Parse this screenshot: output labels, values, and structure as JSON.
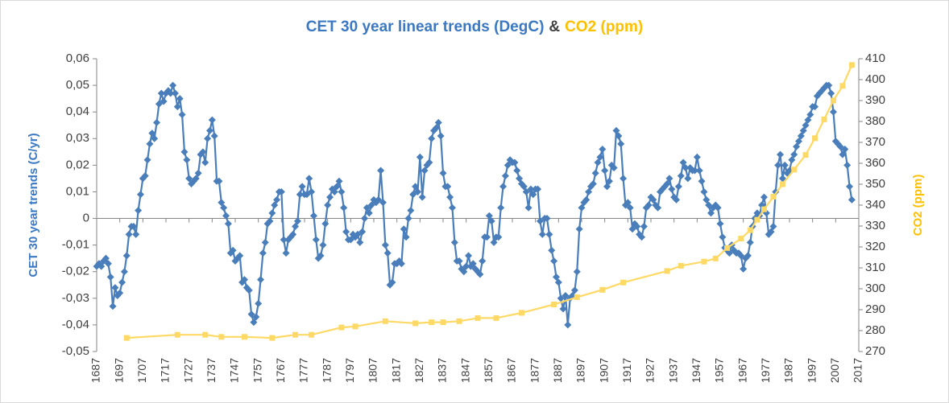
{
  "chart_data": {
    "type": "line",
    "title": [
      "CET 30 year linear trends (DegC)",
      "&",
      "CO2  (ppm)"
    ],
    "title_colors": [
      "#3b78c3",
      "#404040",
      "#ffc000"
    ],
    "y_label": "CET 30 year trends (C/yr)",
    "y2_label": "CO2  (ppm)",
    "xlim": [
      1687,
      2017
    ],
    "xticks": [
      1687,
      1697,
      1707,
      1717,
      1727,
      1737,
      1747,
      1757,
      1767,
      1777,
      1787,
      1797,
      1807,
      1817,
      1827,
      1837,
      1847,
      1857,
      1867,
      1877,
      1887,
      1897,
      1907,
      1917,
      1927,
      1937,
      1947,
      1957,
      1967,
      1977,
      1987,
      1997,
      2007,
      2017
    ],
    "ylim": [
      -0.05,
      0.06
    ],
    "yticks": [
      {
        "value": 0.06,
        "label": "0,06"
      },
      {
        "value": 0.05,
        "label": "0,05"
      },
      {
        "value": 0.04,
        "label": "0,04"
      },
      {
        "value": 0.03,
        "label": "0,03"
      },
      {
        "value": 0.02,
        "label": "0,02"
      },
      {
        "value": 0.01,
        "label": "0,01"
      },
      0,
      {
        "value": -0.01,
        "label": "-0,01"
      },
      {
        "value": -0.02,
        "label": "-0,02"
      },
      {
        "value": -0.03,
        "label": "-0,03"
      },
      {
        "value": -0.04,
        "label": "-0,04"
      },
      {
        "value": -0.05,
        "label": "-0,05"
      }
    ],
    "y2lim": [
      270,
      410
    ],
    "y2ticks": [
      270,
      280,
      290,
      300,
      310,
      320,
      330,
      340,
      350,
      360,
      370,
      380,
      390,
      400,
      410
    ],
    "grid": false,
    "series": [
      {
        "color": "#4a7ebb",
        "marker": "diamond",
        "axis": "y",
        "x": [
          1687,
          1688,
          1689,
          1690,
          1691,
          1692,
          1693,
          1694,
          1695,
          1696,
          1697,
          1698,
          1699,
          1700,
          1701,
          1702,
          1703,
          1704,
          1705,
          1706,
          1707,
          1708,
          1709,
          1710,
          1711,
          1712,
          1713,
          1714,
          1715,
          1716,
          1717,
          1718,
          1719,
          1720,
          1721,
          1722,
          1723,
          1724,
          1725,
          1726,
          1727,
          1728,
          1729,
          1730,
          1731,
          1732,
          1733,
          1734,
          1735,
          1736,
          1737,
          1738,
          1739,
          1740,
          1741,
          1742,
          1743,
          1744,
          1745,
          1746,
          1747,
          1748,
          1749,
          1750,
          1751,
          1752,
          1753,
          1754,
          1755,
          1756,
          1757,
          1758,
          1759,
          1760,
          1761,
          1762,
          1763,
          1764,
          1765,
          1766,
          1767,
          1768,
          1769,
          1770,
          1771,
          1772,
          1773,
          1774,
          1775,
          1776,
          1777,
          1778,
          1779,
          1780,
          1781,
          1782,
          1783,
          1784,
          1785,
          1786,
          1787,
          1788,
          1789,
          1790,
          1791,
          1792,
          1793,
          1794,
          1795,
          1796,
          1797,
          1798,
          1799,
          1800,
          1801,
          1802,
          1803,
          1804,
          1805,
          1806,
          1807,
          1808,
          1809,
          1810,
          1811,
          1812,
          1813,
          1814,
          1815,
          1816,
          1817,
          1818,
          1819,
          1820,
          1821,
          1822,
          1823,
          1824,
          1825,
          1826,
          1827,
          1828,
          1829,
          1830,
          1831,
          1832,
          1833,
          1834,
          1835,
          1836,
          1837,
          1838,
          1839,
          1840,
          1841,
          1842,
          1843,
          1844,
          1845,
          1846,
          1847,
          1848,
          1849,
          1850,
          1851,
          1852,
          1853,
          1854,
          1855,
          1856,
          1857,
          1858,
          1859,
          1860,
          1861,
          1862,
          1863,
          1864,
          1865,
          1866,
          1867,
          1868,
          1869,
          1870,
          1871,
          1872,
          1873,
          1874,
          1875,
          1876,
          1877,
          1878,
          1879,
          1880,
          1881,
          1882,
          1883,
          1884,
          1885,
          1886,
          1887,
          1888,
          1889,
          1890,
          1891,
          1892,
          1893,
          1894,
          1895,
          1896,
          1897,
          1898,
          1899,
          1900,
          1901,
          1902,
          1903,
          1904,
          1905,
          1906,
          1907,
          1908,
          1909,
          1910,
          1911,
          1912,
          1913,
          1914,
          1915,
          1916,
          1917,
          1918,
          1919,
          1920,
          1921,
          1922,
          1923,
          1924,
          1925,
          1926,
          1927,
          1928,
          1929,
          1930,
          1931,
          1932,
          1933,
          1934,
          1935,
          1936,
          1937,
          1938,
          1939,
          1940,
          1941,
          1942,
          1943,
          1944,
          1945,
          1946,
          1947,
          1948,
          1949,
          1950,
          1951,
          1952,
          1953,
          1954,
          1955,
          1956,
          1957,
          1958,
          1959,
          1960,
          1961,
          1962,
          1963,
          1964,
          1965,
          1966,
          1967,
          1968,
          1969,
          1970,
          1971,
          1972,
          1973,
          1974,
          1975,
          1976,
          1977,
          1978,
          1979,
          1980,
          1981,
          1982,
          1983,
          1984,
          1985,
          1986,
          1987,
          1988,
          1989,
          1990,
          1991,
          1992,
          1993,
          1994,
          1995,
          1996,
          1997,
          1998,
          1999,
          2000,
          2001,
          2002,
          2003,
          2004,
          2005,
          2006,
          2007,
          2008,
          2009,
          2010,
          2011,
          2012,
          2013,
          2014
        ],
        "values": [
          -0.018,
          -0.017,
          -0.018,
          -0.016,
          -0.015,
          -0.017,
          -0.022,
          -0.033,
          -0.026,
          -0.029,
          -0.028,
          -0.024,
          -0.02,
          -0.014,
          -0.006,
          -0.003,
          -0.003,
          -0.006,
          0.003,
          0.009,
          0.015,
          0.016,
          0.022,
          0.028,
          0.032,
          0.03,
          0.036,
          0.043,
          0.047,
          0.044,
          0.047,
          0.048,
          0.047,
          0.05,
          0.047,
          0.042,
          0.045,
          0.039,
          0.025,
          0.022,
          0.015,
          0.013,
          0.014,
          0.015,
          0.017,
          0.024,
          0.025,
          0.021,
          0.03,
          0.033,
          0.037,
          0.031,
          0.014,
          0.014,
          0.006,
          0.004,
          0.001,
          -0.002,
          -0.013,
          -0.012,
          -0.016,
          -0.015,
          -0.014,
          -0.024,
          -0.023,
          -0.026,
          -0.027,
          -0.036,
          -0.039,
          -0.037,
          -0.032,
          -0.023,
          -0.013,
          -0.009,
          -0.002,
          -0.001,
          0.002,
          0.005,
          0.007,
          0.01,
          0.01,
          -0.008,
          -0.013,
          -0.008,
          -0.007,
          -0.006,
          -0.003,
          -0.001,
          0.009,
          0.012,
          0.009,
          0.009,
          0.015,
          0.01,
          0.001,
          -0.008,
          -0.015,
          -0.014,
          -0.01,
          -0.002,
          0.005,
          0.008,
          0.011,
          0.01,
          0.012,
          0.014,
          0.01,
          0.004,
          -0.005,
          -0.008,
          -0.008,
          -0.006,
          -0.007,
          -0.006,
          -0.009,
          -0.005,
          0.0,
          0.004,
          0.002,
          0.005,
          0.007,
          0.006,
          0.007,
          0.018,
          0.006,
          -0.01,
          -0.013,
          -0.025,
          -0.024,
          -0.017,
          -0.017,
          -0.016,
          -0.017,
          -0.004,
          -0.007,
          0.0,
          0.003,
          0.009,
          0.012,
          0.01,
          0.023,
          0.008,
          0.018,
          0.02,
          0.021,
          0.03,
          0.033,
          0.034,
          0.036,
          0.031,
          0.017,
          0.012,
          0.012,
          0.008,
          0.004,
          -0.009,
          -0.016,
          -0.016,
          -0.019,
          -0.02,
          -0.018,
          -0.014,
          -0.018,
          -0.017,
          -0.019,
          -0.02,
          -0.021,
          -0.016,
          -0.007,
          -0.007,
          0.001,
          -0.001,
          -0.009,
          -0.007,
          -0.007,
          0.004,
          0.012,
          0.016,
          0.02,
          0.022,
          0.021,
          0.021,
          0.018,
          0.015,
          0.013,
          0.012,
          0.01,
          0.004,
          0.011,
          0.009,
          0.011,
          0.011,
          -0.001,
          -0.006,
          0.0,
          0.0,
          -0.006,
          -0.012,
          -0.016,
          -0.022,
          -0.024,
          -0.03,
          -0.034,
          -0.029,
          -0.04,
          -0.03,
          -0.029,
          -0.027,
          -0.02,
          -0.004,
          0.004,
          0.006,
          0.007,
          0.01,
          0.012,
          0.013,
          0.017,
          0.021,
          0.023,
          0.026,
          0.018,
          0.012,
          0.014,
          0.02,
          0.019,
          0.033,
          0.031,
          0.028,
          0.015,
          0.005,
          0.006,
          0.004,
          -0.004,
          -0.002,
          -0.003,
          -0.006,
          -0.007,
          -0.003,
          0.004,
          0.005,
          0.008,
          0.007,
          0.005,
          0.004,
          0.01,
          0.011,
          0.012,
          0.013,
          0.015,
          0.011,
          0.008,
          0.007,
          0.012,
          0.016,
          0.021,
          0.019,
          0.015,
          0.019,
          0.018,
          0.018,
          0.023,
          0.018,
          0.014,
          0.01,
          0.007,
          0.005,
          0.002,
          0.004,
          0.005,
          0.004,
          -0.002,
          -0.007,
          -0.011,
          -0.012,
          -0.013,
          -0.01,
          -0.012,
          -0.013,
          -0.013,
          -0.014,
          -0.019,
          -0.015,
          -0.014,
          -0.009,
          -0.003,
          0.0,
          0.002,
          0.001,
          0.005,
          0.008,
          0.002,
          -0.006,
          -0.005,
          -0.003,
          0.01,
          0.02,
          0.024,
          0.015,
          0.02,
          0.017,
          0.018,
          0.022,
          0.024,
          0.027,
          0.029,
          0.031,
          0.033,
          0.035,
          0.037,
          0.039,
          0.042,
          0.042,
          0.046,
          0.047,
          0.048,
          0.049,
          0.05,
          0.05,
          0.047,
          0.04,
          0.029,
          0.028,
          0.027,
          0.024,
          0.026,
          0.02,
          0.012,
          0.007
        ]
      },
      {
        "color": "#ffd966",
        "marker": "square",
        "axis": "y2",
        "x": [
          1700,
          1722,
          1734,
          1741,
          1751,
          1763,
          1773,
          1780,
          1793,
          1799,
          1812,
          1825,
          1832,
          1837,
          1844,
          1852,
          1860,
          1871,
          1885,
          1895,
          1906,
          1915,
          1934,
          1940,
          1950,
          1955,
          1960,
          1966,
          1970,
          1973,
          1976,
          1980,
          1984,
          1989,
          1994,
          1998,
          2002,
          2006,
          2010,
          2014
        ],
        "values": [
          276.5,
          278,
          278,
          277,
          277,
          276.5,
          278,
          278,
          281.5,
          282,
          284.5,
          283.5,
          284,
          284,
          284.5,
          286,
          286,
          288.5,
          292.5,
          296,
          299.5,
          303,
          308.5,
          311,
          313,
          314.5,
          319.5,
          324,
          328,
          333,
          338,
          344,
          350,
          357,
          364,
          372,
          381,
          390,
          397,
          407
        ]
      }
    ]
  }
}
